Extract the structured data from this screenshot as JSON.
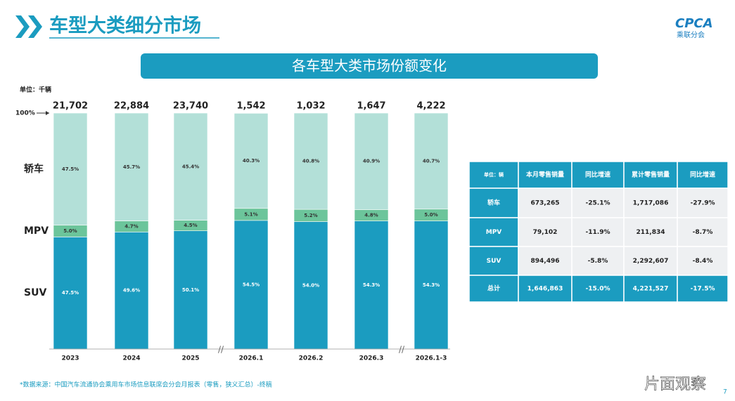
{
  "slide": {
    "title": "车型大类细分市场",
    "banner": "各车型大类市场份额变化",
    "logo": "CPCA",
    "logo_sub": "乘联分会",
    "source": "*数据来源：中国汽车流通协会乘用车市场信息联席会分会月报表（零售，狭义汇总）-终稿",
    "page": "7",
    "watermark": "片面观察"
  },
  "chart_data": {
    "type": "stacked_bar",
    "unit": "单位：千辆",
    "categories": [
      "2023",
      "2024",
      "2025",
      "2026.1",
      "2026.2",
      "2026.3",
      "2026.1-3"
    ],
    "ylim": [
      0,
      100
    ],
    "yticks": [
      {
        "value": 100,
        "label": "100%"
      }
    ],
    "totals": {
      "values": [
        21702,
        22884,
        23740,
        1542,
        1032,
        1647,
        4222
      ],
      "value_labels": [
        "21,702",
        "22,884",
        "23,740",
        "1,542",
        "1,032",
        "1,647",
        "4,222"
      ]
    },
    "series": [
      {
        "name": "SUV",
        "color": "#1b9cc0",
        "values": [
          47.5,
          49.6,
          50.1,
          54.5,
          54.0,
          54.3,
          54.3
        ],
        "value_labels": [
          "47.5%",
          "49.6%",
          "50.1%",
          "54.5%",
          "54.0%",
          "54.3%",
          "54.3%"
        ]
      },
      {
        "name": "MPV",
        "color": "#6cc59b",
        "values": [
          5.0,
          4.7,
          4.5,
          5.1,
          5.2,
          4.8,
          5.0
        ],
        "value_labels": [
          "5.0%",
          "4.7%",
          "4.5%",
          "5.1%",
          "5.2%",
          "4.8%",
          "5.0%"
        ]
      },
      {
        "name": "轿车",
        "color": "#b3e0d8",
        "values": [
          47.5,
          45.7,
          45.4,
          40.3,
          40.8,
          40.9,
          40.7
        ],
        "value_labels": [
          "47.5%",
          "45.7%",
          "45.4%",
          "40.3%",
          "40.8%",
          "40.9%",
          "40.7%"
        ]
      }
    ]
  },
  "table": {
    "header": [
      "单位：辆",
      "本月零售销量",
      "同比增速",
      "累计零售销量",
      "同比增速"
    ],
    "rows": [
      [
        "轿车",
        "673,265",
        "-25.1%",
        "1,717,086",
        "-27.9%"
      ],
      [
        "MPV",
        "79,102",
        "-11.9%",
        "211,834",
        "-8.7%"
      ],
      [
        "SUV",
        "894,496",
        "-5.8%",
        "2,292,607",
        "-8.4%"
      ],
      [
        "总计",
        "1,646,863",
        "-15.0%",
        "4,221,527",
        "-17.5%"
      ]
    ]
  }
}
